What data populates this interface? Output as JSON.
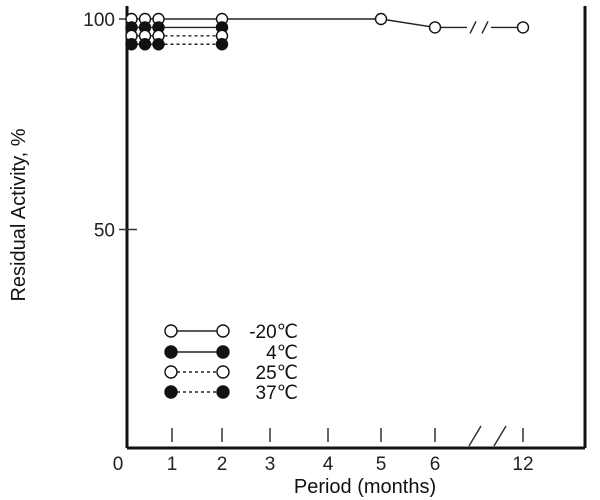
{
  "chart_data": {
    "type": "line",
    "xlabel": "Period (months)",
    "ylabel": "Residual Activity, %",
    "xlim": [
      0,
      12
    ],
    "ylim": [
      0,
      100
    ],
    "x_ticks": [
      {
        "value": 0,
        "label": "0"
      },
      {
        "value": 1,
        "label": "1"
      },
      {
        "value": 2,
        "label": "2"
      },
      {
        "value": 3,
        "label": "3"
      },
      {
        "value": 4,
        "label": "4"
      },
      {
        "value": 5,
        "label": "5"
      },
      {
        "value": 6,
        "label": "6"
      },
      {
        "value": 12,
        "label": "12"
      }
    ],
    "y_ticks": [
      {
        "value": 50,
        "label": "50"
      },
      {
        "value": 100,
        "label": "100"
      }
    ],
    "axis_break": "between 6 and 12 months",
    "grid": false,
    "legend_position": "bottom-left",
    "series": [
      {
        "name": "-20℃",
        "marker": "open",
        "line": "solid",
        "x": [
          0.25,
          0.5,
          0.75,
          2,
          5,
          6,
          12
        ],
        "y": [
          100,
          100,
          100,
          100,
          100,
          98,
          98
        ]
      },
      {
        "name": "4℃",
        "marker": "filled",
        "line": "solid",
        "x": [
          0.25,
          0.5,
          0.75,
          2
        ],
        "y": [
          98,
          98,
          98,
          98
        ]
      },
      {
        "name": "25℃",
        "marker": "open",
        "line": "dotted",
        "x": [
          0.25,
          0.5,
          0.75,
          2
        ],
        "y": [
          96,
          96,
          96,
          96
        ]
      },
      {
        "name": "37℃",
        "marker": "filled",
        "line": "dotted",
        "x": [
          0.25,
          0.5,
          0.75,
          2
        ],
        "y": [
          94,
          94,
          94,
          94
        ]
      }
    ]
  }
}
